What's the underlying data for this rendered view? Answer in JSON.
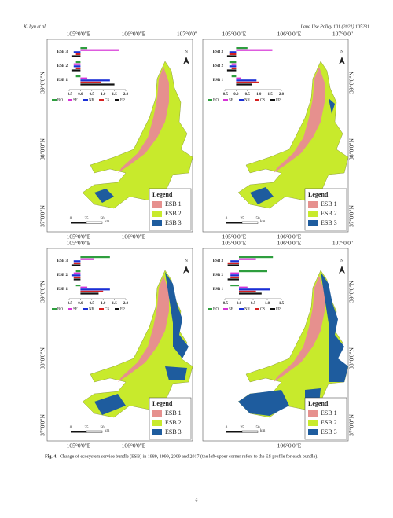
{
  "header": {
    "authors": "K. Lyu et al.",
    "journal": "Land Use Policy 101 (2021) 105231"
  },
  "figure": {
    "panels": [
      {
        "top_lon": [
          "105°0'0\"E",
          "106°0'0\"E",
          "107°0'0\""
        ],
        "bottom_lon": [
          "105°0'0\"E",
          "106°0'0\"E"
        ],
        "lat": [
          "39°0'0\"N",
          "38°0'0\"N",
          "37°0'0\"N"
        ],
        "north": "N",
        "legend": {
          "title": "Legend",
          "items": [
            "ESB 1",
            "ESB 2",
            "ESB 3"
          ]
        },
        "scale": {
          "ticks": [
            0,
            25,
            50
          ],
          "unit": "km"
        },
        "profile": {
          "bundles": [
            "ESB 3",
            "ESB 2",
            "ESB 1"
          ],
          "services": [
            "RO",
            "SF",
            "NR",
            "CS",
            "EP"
          ],
          "colors": [
            "#2e9e3e",
            "#d633d6",
            "#1a2fd6",
            "#d62020",
            "#111111"
          ],
          "values": [
            [
              0.3,
              1.7,
              -0.3,
              -0.2,
              -0.4
            ],
            [
              -0.2,
              -0.3,
              -0.3,
              -0.2,
              -0.4
            ],
            [
              -0.2,
              0.3,
              1.3,
              0.9,
              1.5
            ]
          ],
          "xlim": [
            -0.5,
            2.0
          ],
          "xticks": [
            -0.5,
            {
              "value": 0,
              "label": "0.0"
            },
            0.5,
            {
              "value": 1,
              "label": "1.0"
            },
            1.5,
            {
              "value": 2,
              "label": "2.0"
            }
          ]
        }
      },
      {
        "top_lon": [
          "105°0'0\"E",
          "106°0'0\"E",
          "107°0'0\""
        ],
        "bottom_lon": [
          "105°0'0\"E",
          "106°0'0\"E"
        ],
        "lat": [
          "39°0'0\"N",
          "38°0'0\"N",
          "37°0'0\"N"
        ],
        "north": "N",
        "legend": {
          "title": "Legend",
          "items": [
            "ESB 1",
            "ESB 2",
            "ESB 3"
          ]
        },
        "scale": {
          "ticks": [
            0,
            25,
            50
          ],
          "unit": "km"
        },
        "profile": {
          "bundles": [
            "ESB 3",
            "ESB 2",
            "ESB 1"
          ],
          "services": [
            "RO",
            "SF",
            "NR",
            "CS",
            "EP"
          ],
          "colors": [
            "#2e9e3e",
            "#d633d6",
            "#1a2fd6",
            "#d62020",
            "#111111"
          ],
          "values": [
            [
              0.5,
              1.6,
              -0.3,
              -0.3,
              -0.4
            ],
            [
              -0.3,
              -0.2,
              -0.3,
              -0.2,
              -0.4
            ],
            [
              -0.2,
              0.2,
              0.9,
              1.0,
              0.7
            ]
          ],
          "xlim": [
            -0.5,
            2.0
          ],
          "xticks": [
            -0.5,
            {
              "value": 0,
              "label": "0.0"
            },
            0.5,
            {
              "value": 1,
              "label": "1.0"
            },
            1.5,
            {
              "value": 2,
              "label": "2.0"
            }
          ]
        }
      },
      {
        "top_lon": [
          "105°0'0\"E"
        ],
        "bottom_lon": [
          "105°0'0\"E",
          "106°0'0\"E"
        ],
        "lat": [
          "39°0'0\"N",
          "38°0'0\"N",
          "37°0'0\"N"
        ],
        "north": "N",
        "legend": {
          "title": "Legend",
          "items": [
            "ESB 1",
            "ESB 2",
            "ESB 3"
          ]
        },
        "scale": {
          "ticks": [
            0,
            25,
            50
          ],
          "unit": "km"
        },
        "profile": {
          "bundles": [
            "ESB 3",
            "ESB 2",
            "ESB 1"
          ],
          "services": [
            "RO",
            "SF",
            "NR",
            "CS",
            "EP"
          ],
          "colors": [
            "#2e9e3e",
            "#d633d6",
            "#1a2fd6",
            "#d62020",
            "#111111"
          ],
          "values": [
            [
              1.3,
              0.6,
              -0.3,
              -0.3,
              -0.4
            ],
            [
              -0.2,
              -0.3,
              -0.4,
              -0.3,
              -0.3
            ],
            [
              -0.2,
              0.3,
              1.3,
              1.0,
              0.8
            ]
          ],
          "xlim": [
            -0.5,
            2.0
          ],
          "xticks": [
            -0.5,
            {
              "value": 0,
              "label": "0.0"
            },
            0.5,
            {
              "value": 1,
              "label": "1.0"
            },
            1.5,
            {
              "value": 2,
              "label": "2.0"
            }
          ]
        }
      },
      {
        "top_lon": [
          "105°0'0\"E",
          "106°0'0\"E",
          "107°0'0\""
        ],
        "bottom_lon": [
          "106°0'0\"E"
        ],
        "lat": [
          "39°0'0\"N",
          "38°0'0\"N",
          "37°0'0\"N"
        ],
        "north": "N",
        "legend": {
          "title": "Legend",
          "items": [
            "ESB 1",
            "ESB 2",
            "ESB 3"
          ]
        },
        "scale": {
          "ticks": [
            0,
            25,
            50
          ],
          "unit": "km"
        },
        "profile": {
          "bundles": [
            "ESB 3",
            "ESB 2",
            "ESB 1"
          ],
          "services": [
            "RO",
            "SF",
            "NR",
            "CS",
            "EP"
          ],
          "colors": [
            "#2e9e3e",
            "#d633d6",
            "#1a2fd6",
            "#d62020",
            "#111111"
          ],
          "values": [
            [
              1.2,
              0.6,
              -0.3,
              -0.4,
              -0.4
            ],
            [
              1.0,
              -0.3,
              -0.3,
              -0.3,
              -0.4
            ],
            [
              -0.3,
              0.3,
              1.1,
              0.6,
              0.8
            ]
          ],
          "xlim": [
            -0.5,
            1.5
          ],
          "xticks": [
            -0.5,
            {
              "value": 0,
              "label": "0.0"
            },
            0.5,
            {
              "value": 1,
              "label": "1.0"
            },
            1.5
          ]
        }
      }
    ],
    "caption_label": "Fig. 4.",
    "caption": "Change of ecosystem service bundle (ESB) in 1989, 1999, 2009 and 2017 (the left-upper corner refers to the ES profile for each bundle)."
  },
  "page_number": "6"
}
